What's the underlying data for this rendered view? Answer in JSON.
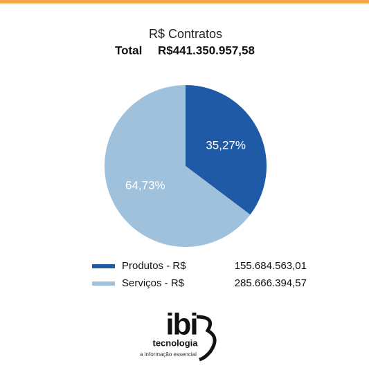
{
  "chart_data": {
    "type": "pie",
    "title": "R$ Contratos",
    "total_label": "Total",
    "total_value": "R$441.350.957,58",
    "categories": [
      "Produtos - R$",
      "Serviços - R$"
    ],
    "values": [
      35.27,
      64.73
    ],
    "value_labels": [
      "35,27%",
      "64,73%"
    ],
    "legend_values": [
      "155.684.563,01",
      "285.666.394,57"
    ],
    "colors": [
      "#1f5aa6",
      "#a0c1db"
    ]
  },
  "logo": {
    "brand": "ibi",
    "name": "tecnologia",
    "tagline": "a informação essencial"
  }
}
